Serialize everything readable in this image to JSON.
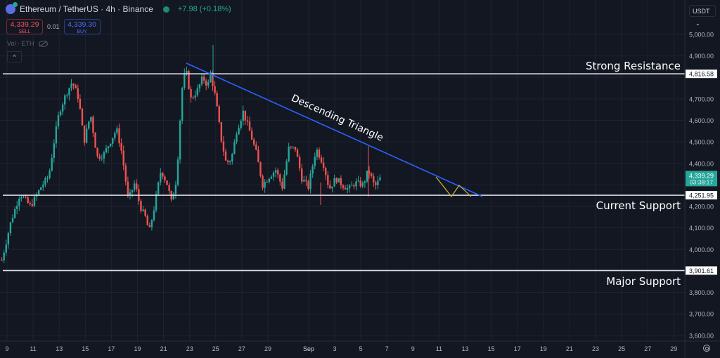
{
  "header": {
    "symbol_title": "Ethereum / TetherUS · 4h · Binance",
    "change": "+7.98 (+0.18%)",
    "sell": {
      "price": "4,339.29",
      "label": "SELL"
    },
    "spread": "0.01",
    "buy": {
      "price": "4,339.30",
      "label": "BUY"
    },
    "volume_indicator": "Vol · ETH",
    "collapse_glyph": "^"
  },
  "price_axis": {
    "currency": "USDT",
    "currency_chevron": "⌄",
    "last_price": "4,339.29",
    "countdown": "03:38:17",
    "settings_icon": "gear-icon"
  },
  "colors": {
    "background": "#131722",
    "grid": "#1f2330",
    "up": "#26a69a",
    "down": "#ef5350",
    "trendline": "#2962ff",
    "projection": "#c9b938",
    "level_line": "#e0e3eb",
    "axis_text": "#b2b5be",
    "last_price_bg": "#26a69a"
  },
  "chart_data": {
    "type": "candlestick",
    "title": "Ethereum / TetherUS · 4h · Binance",
    "timeframe": "4h",
    "xlabel": "",
    "ylabel": "USDT",
    "ylim": [
      3580,
      5060
    ],
    "grid": true,
    "y_ticks": [
      5000,
      4900,
      4800,
      4700,
      4600,
      4500,
      4400,
      4300,
      4200,
      4100,
      4000,
      3900,
      3800,
      3700,
      3600
    ],
    "y_tick_labels": [
      "5,000.00",
      "4,900.00",
      "4,800.00",
      "4,700.00",
      "4,600.00",
      "4,500.00",
      "4,400.00",
      "4,300.00",
      "4,200.00",
      "4,100.00",
      "4,000.00",
      "3,900.00",
      "3,800.00",
      "3,700.00",
      "3,600.00"
    ],
    "x_tick_labels": [
      "9",
      "11",
      "13",
      "15",
      "17",
      "19",
      "21",
      "23",
      "25",
      "27",
      "29",
      "Sep",
      "3",
      "5",
      "7",
      "9",
      "11",
      "13",
      "15",
      "17",
      "19",
      "21",
      "23",
      "25",
      "27",
      "29"
    ],
    "horizontal_levels": [
      {
        "label": "Strong Resistance",
        "price": 4816.58,
        "price_label": "4,816.58"
      },
      {
        "label": "Current Support",
        "price": 4251.95,
        "price_label": "4,251.95"
      },
      {
        "label": "Major Support",
        "price": 3901.61,
        "price_label": "3,901.61"
      }
    ],
    "trendline": {
      "label": "Descending Triangle",
      "from": {
        "x_day": 22.7,
        "price": 4870
      },
      "to": {
        "x_day": 36.9,
        "price": 4250
      }
    },
    "projection_zigzag": [
      {
        "x_day": 33.3,
        "price": 4355
      },
      {
        "x_day": 34.3,
        "price": 4252
      },
      {
        "x_day": 35.1,
        "price": 4310
      },
      {
        "x_day": 36.1,
        "price": 4252
      }
    ],
    "last_price": 4339.29,
    "price_path_keypoints": [
      {
        "x_day": 8.6,
        "price": 3950
      },
      {
        "x_day": 9.3,
        "price": 4130
      },
      {
        "x_day": 10.0,
        "price": 4260
      },
      {
        "x_day": 10.8,
        "price": 4200
      },
      {
        "x_day": 11.6,
        "price": 4290
      },
      {
        "x_day": 12.2,
        "price": 4340
      },
      {
        "x_day": 12.6,
        "price": 4500
      },
      {
        "x_day": 13.0,
        "price": 4640
      },
      {
        "x_day": 13.5,
        "price": 4720
      },
      {
        "x_day": 14.0,
        "price": 4780
      },
      {
        "x_day": 14.5,
        "price": 4700
      },
      {
        "x_day": 14.9,
        "price": 4500
      },
      {
        "x_day": 15.4,
        "price": 4630
      },
      {
        "x_day": 15.9,
        "price": 4430
      },
      {
        "x_day": 16.4,
        "price": 4440
      },
      {
        "x_day": 16.9,
        "price": 4500
      },
      {
        "x_day": 17.4,
        "price": 4560
      },
      {
        "x_day": 17.8,
        "price": 4450
      },
      {
        "x_day": 18.3,
        "price": 4230
      },
      {
        "x_day": 18.8,
        "price": 4310
      },
      {
        "x_day": 19.2,
        "price": 4200
      },
      {
        "x_day": 19.6,
        "price": 4150
      },
      {
        "x_day": 19.9,
        "price": 4080
      },
      {
        "x_day": 20.3,
        "price": 4200
      },
      {
        "x_day": 20.8,
        "price": 4370
      },
      {
        "x_day": 21.3,
        "price": 4300
      },
      {
        "x_day": 21.6,
        "price": 4220
      },
      {
        "x_day": 22.0,
        "price": 4330
      },
      {
        "x_day": 22.4,
        "price": 4740
      },
      {
        "x_day": 22.7,
        "price": 4840
      },
      {
        "x_day": 23.1,
        "price": 4700
      },
      {
        "x_day": 23.6,
        "price": 4740
      },
      {
        "x_day": 24.0,
        "price": 4800
      },
      {
        "x_day": 24.4,
        "price": 4760
      },
      {
        "x_day": 24.6,
        "price": 4820
      },
      {
        "x_day": 25.0,
        "price": 4700
      },
      {
        "x_day": 25.4,
        "price": 4520
      },
      {
        "x_day": 25.8,
        "price": 4400
      },
      {
        "x_day": 26.2,
        "price": 4420
      },
      {
        "x_day": 26.6,
        "price": 4550
      },
      {
        "x_day": 27.1,
        "price": 4640
      },
      {
        "x_day": 27.6,
        "price": 4550
      },
      {
        "x_day": 28.1,
        "price": 4450
      },
      {
        "x_day": 28.6,
        "price": 4300
      },
      {
        "x_day": 29.1,
        "price": 4340
      },
      {
        "x_day": 29.6,
        "price": 4370
      },
      {
        "x_day": 30.1,
        "price": 4290
      },
      {
        "x_day": 30.6,
        "price": 4470
      },
      {
        "x_day": 31.1,
        "price": 4470
      },
      {
        "x_day": 31.6,
        "price": 4330
      },
      {
        "x_day": 32.1,
        "price": 4290
      },
      {
        "x_day": 32.7,
        "price": 4470
      },
      {
        "x_day": 33.3,
        "price": 4390
      },
      {
        "x_day": 33.7,
        "price": 4280
      },
      {
        "x_day": 34.2,
        "price": 4330
      },
      {
        "x_day": 34.7,
        "price": 4300
      },
      {
        "x_day": 35.2,
        "price": 4280
      },
      {
        "x_day": 35.7,
        "price": 4310
      },
      {
        "x_day": 36.3,
        "price": 4300
      },
      {
        "x_day": 36.7,
        "price": 4370
      },
      {
        "x_day": 37.2,
        "price": 4290
      },
      {
        "x_day": 37.7,
        "price": 4339
      }
    ]
  }
}
